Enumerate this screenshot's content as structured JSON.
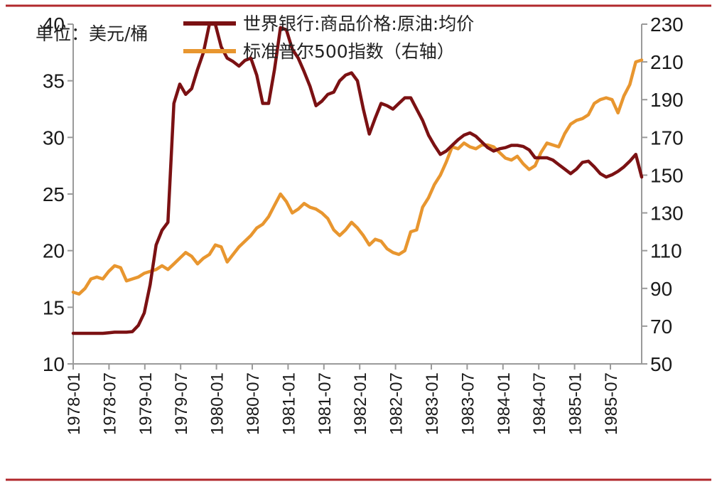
{
  "chart_data": {
    "type": "line",
    "unit_label": "单位：美元/桶",
    "xlabel": "",
    "ylabel": "",
    "ylim_left": [
      10,
      40
    ],
    "ylim_right": [
      50,
      230
    ],
    "left_ticks": [
      40,
      35,
      30,
      25,
      20,
      15,
      10
    ],
    "right_ticks": [
      230,
      210,
      190,
      170,
      150,
      130,
      110,
      90,
      70,
      50
    ],
    "x_tick_labels": [
      "1978-01",
      "1978-07",
      "1979-01",
      "1979-07",
      "1980-01",
      "1980-07",
      "1981-01",
      "1981-07",
      "1982-01",
      "1982-07",
      "1983-01",
      "1983-07",
      "1984-01",
      "1984-07",
      "1985-01",
      "1985-07"
    ],
    "legend_position": "top-center",
    "grid": false,
    "colors": {
      "oil": "#7b1113",
      "spx": "#e8962f",
      "frame": "#b1282c",
      "axis": "#9a9a9a"
    },
    "series": [
      {
        "name": "世界银行:商品价格:原油:均价",
        "axis": "left",
        "color": "#7b1113",
        "values": [
          12.7,
          12.7,
          12.7,
          12.7,
          12.7,
          12.7,
          12.75,
          12.8,
          12.8,
          12.8,
          12.85,
          13.4,
          14.5,
          17.0,
          20.5,
          21.8,
          22.5,
          33.0,
          34.7,
          33.8,
          34.3,
          36.0,
          37.5,
          40.0,
          40.0,
          38.0,
          37.0,
          36.7,
          36.3,
          36.8,
          37.0,
          35.5,
          33.0,
          33.0,
          36.0,
          39.7,
          39.5,
          37.8,
          37.0,
          35.8,
          34.5,
          32.8,
          33.2,
          33.8,
          34.0,
          35.0,
          35.5,
          35.7,
          35.0,
          32.5,
          30.3,
          31.7,
          33.0,
          32.8,
          32.5,
          33.0,
          33.5,
          33.5,
          32.5,
          31.5,
          30.2,
          29.3,
          28.5,
          28.8,
          29.3,
          29.8,
          30.2,
          30.4,
          30.1,
          29.6,
          29.1,
          28.8,
          29.0,
          29.1,
          29.3,
          29.3,
          29.2,
          28.9,
          28.2,
          28.2,
          28.2,
          28.0,
          27.6,
          27.2,
          26.8,
          27.2,
          27.8,
          27.9,
          27.4,
          26.8,
          26.5,
          26.7,
          27.0,
          27.4,
          27.9,
          28.5,
          26.5
        ]
      },
      {
        "name": "标准普尔500指数（右轴）",
        "axis": "right",
        "color": "#e8962f",
        "values": [
          88,
          87,
          90,
          95,
          96,
          95,
          99,
          102,
          101,
          94,
          95,
          96,
          98,
          99,
          100,
          102,
          100,
          103,
          106,
          109,
          107,
          103,
          106,
          108,
          113,
          112,
          104,
          108,
          112,
          115,
          118,
          122,
          124,
          128,
          134,
          140,
          136,
          130,
          132,
          135,
          133,
          132,
          130,
          127,
          121,
          118,
          121,
          125,
          122,
          118,
          113,
          116,
          115,
          111,
          109,
          108,
          110,
          120,
          121,
          133,
          138,
          145,
          150,
          157,
          165,
          164,
          167,
          165,
          164,
          166,
          166,
          165,
          162,
          159,
          158,
          160,
          156,
          153,
          155,
          162,
          167,
          166,
          165,
          172,
          177,
          179,
          180,
          182,
          188,
          190,
          191,
          190,
          183,
          192,
          198,
          210,
          211
        ]
      }
    ]
  }
}
